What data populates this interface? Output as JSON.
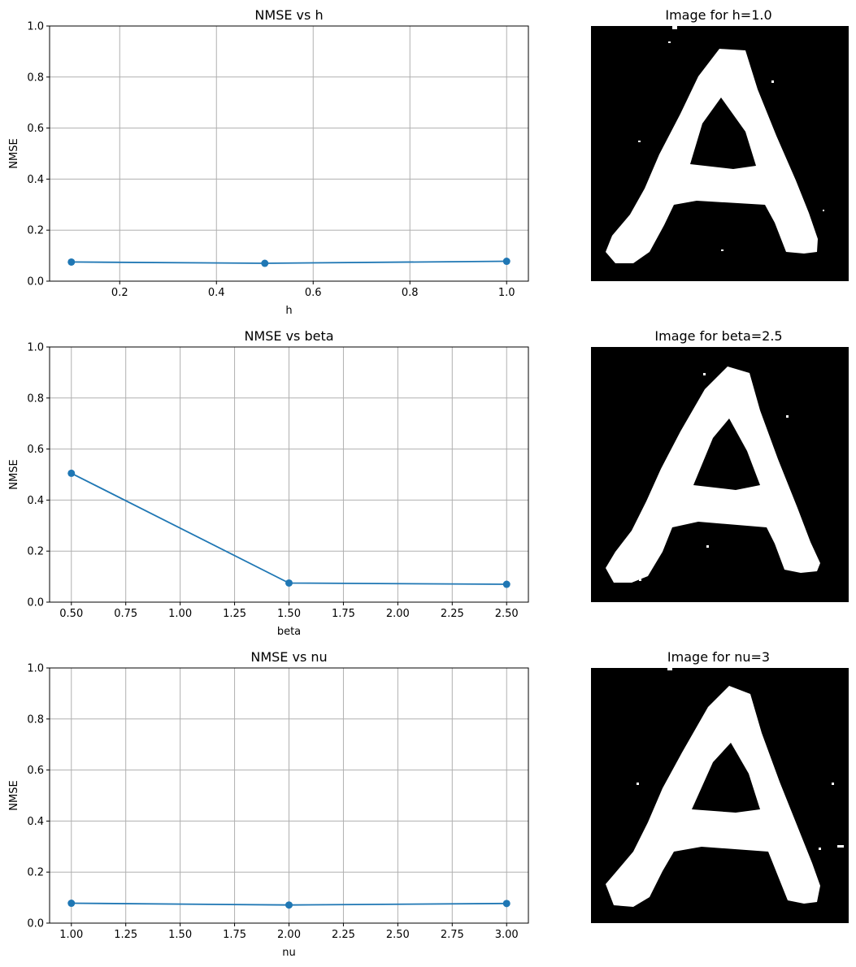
{
  "charts": [
    {
      "title": "NMSE vs h",
      "xlabel": "h",
      "ylabel": "NMSE",
      "x": [
        0.1,
        0.5,
        1.0
      ],
      "y": [
        0.075,
        0.07,
        0.078
      ],
      "xlim": [
        0.055,
        1.045
      ],
      "ylim": [
        0,
        1
      ],
      "xticks": [
        0.2,
        0.4,
        0.6,
        0.8,
        1.0
      ],
      "xticklabels": [
        "0.2",
        "0.4",
        "0.6",
        "0.8",
        "1.0"
      ],
      "yticks": [
        0.0,
        0.2,
        0.4,
        0.6,
        0.8,
        1.0
      ],
      "yticklabels": [
        "0.0",
        "0.2",
        "0.4",
        "0.6",
        "0.8",
        "1.0"
      ]
    },
    {
      "title": "NMSE vs beta",
      "xlabel": "beta",
      "ylabel": "NMSE",
      "x": [
        0.5,
        1.5,
        2.5
      ],
      "y": [
        0.505,
        0.075,
        0.07
      ],
      "xlim": [
        0.4,
        2.6
      ],
      "ylim": [
        0,
        1
      ],
      "xticks": [
        0.5,
        0.75,
        1.0,
        1.25,
        1.5,
        1.75,
        2.0,
        2.25,
        2.5
      ],
      "xticklabels": [
        "0.50",
        "0.75",
        "1.00",
        "1.25",
        "1.50",
        "1.75",
        "2.00",
        "2.25",
        "2.50"
      ],
      "yticks": [
        0.0,
        0.2,
        0.4,
        0.6,
        0.8,
        1.0
      ],
      "yticklabels": [
        "0.0",
        "0.2",
        "0.4",
        "0.6",
        "0.8",
        "1.0"
      ]
    },
    {
      "title": "NMSE vs nu",
      "xlabel": "nu",
      "ylabel": "NMSE",
      "x": [
        1,
        2,
        3
      ],
      "y": [
        0.078,
        0.071,
        0.077
      ],
      "xlim": [
        0.9,
        3.1
      ],
      "ylim": [
        0,
        1
      ],
      "xticks": [
        1.0,
        1.25,
        1.5,
        1.75,
        2.0,
        2.25,
        2.5,
        2.75,
        3.0
      ],
      "xticklabels": [
        "1.00",
        "1.25",
        "1.50",
        "1.75",
        "2.00",
        "2.25",
        "2.50",
        "2.75",
        "3.00"
      ],
      "yticks": [
        0.0,
        0.2,
        0.4,
        0.6,
        0.8,
        1.0
      ],
      "yticklabels": [
        "0.0",
        "0.2",
        "0.4",
        "0.6",
        "0.8",
        "1.0"
      ]
    }
  ],
  "images": [
    {
      "title": "Image for h=1.0"
    },
    {
      "title": "Image for beta=2.5"
    },
    {
      "title": "Image for nu=3"
    }
  ],
  "colors": {
    "line": "#1f77b4",
    "grid": "#b0b0b0",
    "image_bg": "#000000",
    "glyph": "#ffffff"
  },
  "chart_data": [
    {
      "type": "line",
      "title": "NMSE vs h",
      "xlabel": "h",
      "ylabel": "NMSE",
      "series": [
        {
          "x": [
            0.1,
            0.5,
            1.0
          ],
          "y": [
            0.075,
            0.07,
            0.078
          ]
        }
      ],
      "ylim": [
        0,
        1
      ],
      "grid": true
    },
    {
      "type": "line",
      "title": "NMSE vs beta",
      "xlabel": "beta",
      "ylabel": "NMSE",
      "series": [
        {
          "x": [
            0.5,
            1.5,
            2.5
          ],
          "y": [
            0.505,
            0.075,
            0.07
          ]
        }
      ],
      "ylim": [
        0,
        1
      ],
      "grid": true
    },
    {
      "type": "line",
      "title": "NMSE vs nu",
      "xlabel": "nu",
      "ylabel": "NMSE",
      "series": [
        {
          "x": [
            1,
            2,
            3
          ],
          "y": [
            0.078,
            0.071,
            0.077
          ]
        }
      ],
      "ylim": [
        0,
        1
      ],
      "grid": true
    }
  ]
}
